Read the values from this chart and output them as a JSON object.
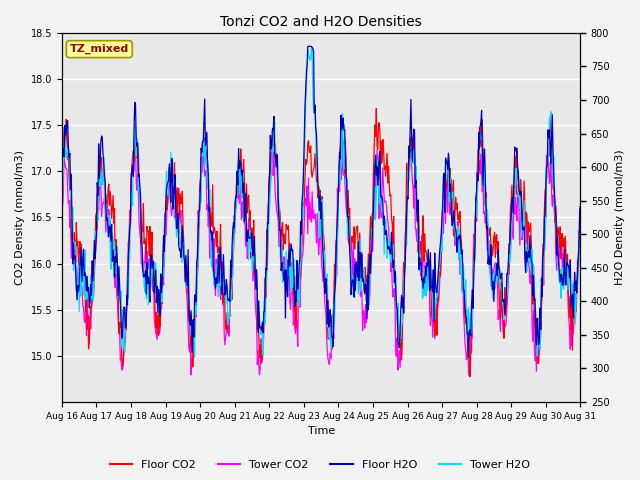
{
  "title": "Tonzi CO2 and H2O Densities",
  "xlabel": "Time",
  "ylabel_left": "CO2 Density (mmol/m3)",
  "ylabel_right": "H2O Density (mmol/m3)",
  "xlim": [
    0,
    15
  ],
  "ylim_left": [
    14.5,
    18.5
  ],
  "ylim_right": [
    250,
    800
  ],
  "xtick_labels": [
    "Aug 16",
    "Aug 17",
    "Aug 18",
    "Aug 19",
    "Aug 20",
    "Aug 21",
    "Aug 22",
    "Aug 23",
    "Aug 24",
    "Aug 25",
    "Aug 26",
    "Aug 27",
    "Aug 28",
    "Aug 29",
    "Aug 30",
    "Aug 31"
  ],
  "yticks_left": [
    15.0,
    15.5,
    16.0,
    16.5,
    17.0,
    17.5,
    18.0,
    18.5
  ],
  "yticks_right": [
    250,
    300,
    350,
    400,
    450,
    500,
    550,
    600,
    650,
    700,
    750,
    800
  ],
  "colors": {
    "floor_co2": "#FF0000",
    "tower_co2": "#FF00FF",
    "floor_h2o": "#0000BB",
    "tower_h2o": "#00DDFF"
  },
  "legend_labels": [
    "Floor CO2",
    "Tower CO2",
    "Floor H2O",
    "Tower H2O"
  ],
  "annotation_text": "TZ_mixed",
  "annotation_color": "#990000",
  "annotation_bg": "#FFFF99",
  "fig_bg": "#F2F2F2",
  "plot_bg": "#E8E8E8",
  "grid_color": "#FFFFFF",
  "seed": 42,
  "n_points": 720
}
